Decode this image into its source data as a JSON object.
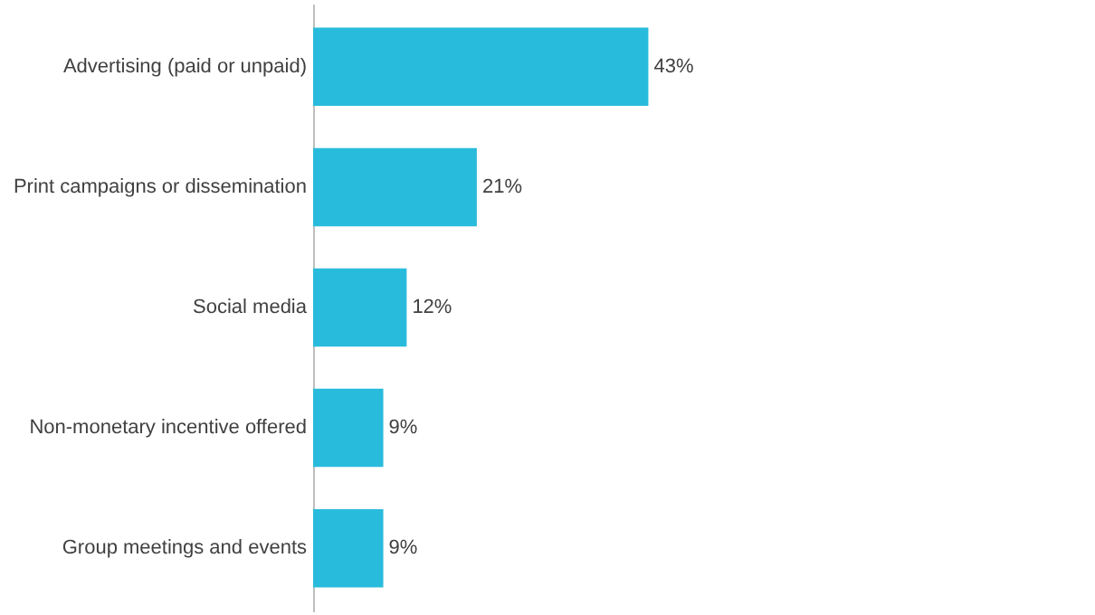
{
  "chart_data": {
    "type": "bar",
    "orientation": "horizontal",
    "categories": [
      "Advertising (paid or unpaid)",
      "Print campaigns or dissemination",
      "Social media",
      "Non-monetary incentive offered",
      "Group meetings and events"
    ],
    "values": [
      43,
      21,
      12,
      9,
      9
    ],
    "color": "#29bbdc",
    "value_labels": [
      "43%",
      "21%",
      "12%",
      "9%",
      "9%"
    ]
  }
}
